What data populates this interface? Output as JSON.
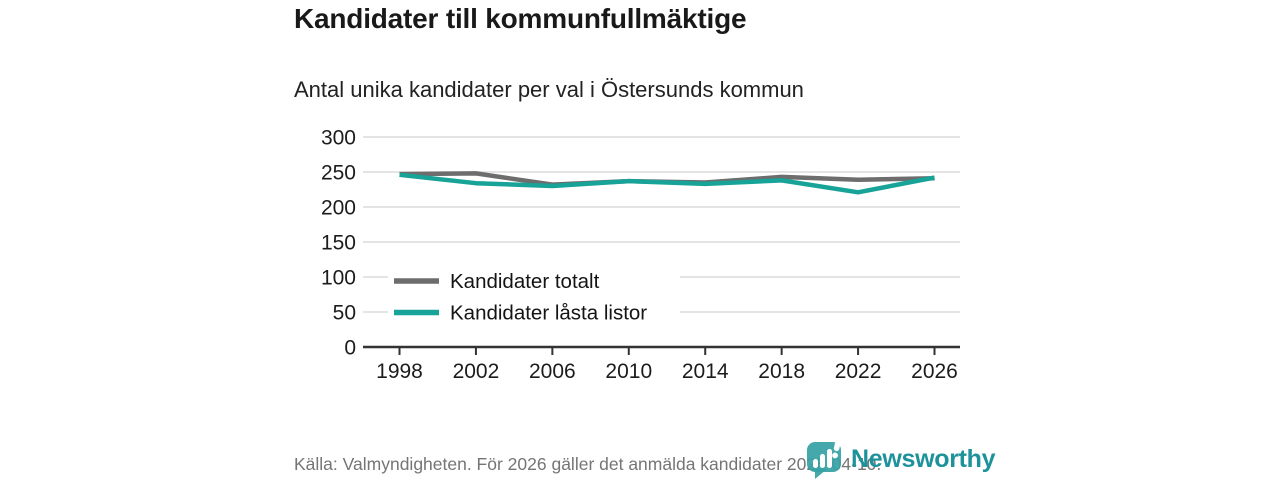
{
  "header": {
    "title": "Kandidater till kommunfullmäktige",
    "subtitle": "Antal unika kandidater per val i Östersunds kommun"
  },
  "chart_data": {
    "type": "line",
    "title": "Kandidater till kommunfullmäktige",
    "subtitle": "Antal unika kandidater per val i Östersunds kommun",
    "categories": [
      "1998",
      "2002",
      "2006",
      "2010",
      "2014",
      "2018",
      "2022",
      "2026"
    ],
    "series": [
      {
        "id": "kandidater-totalt",
        "name": "Kandidater totalt",
        "color": "#6d6d6d",
        "values": [
          247,
          248,
          232,
          237,
          235,
          243,
          239,
          241
        ]
      },
      {
        "id": "kandidater-lasta-listor",
        "name": "Kandidater låsta listor",
        "color": "#17a398",
        "values": [
          246,
          234,
          230,
          237,
          233,
          238,
          221,
          242
        ]
      }
    ],
    "xlabel": "",
    "ylabel": "",
    "ylim": [
      0,
      300
    ],
    "ytick_step": 50,
    "grid": true,
    "legend_position": "inside-left",
    "colors": {
      "grid": "#dbdbdb",
      "axis": "#333333"
    }
  },
  "footer": {
    "source": "Källa: Valmyndigheten. För 2026 gäller det anmälda kandidater 2026-04-10."
  },
  "branding": {
    "name": "Newsworthy",
    "icon": "newsworthy-bubble-chart-icon",
    "color": "#1d929b"
  }
}
